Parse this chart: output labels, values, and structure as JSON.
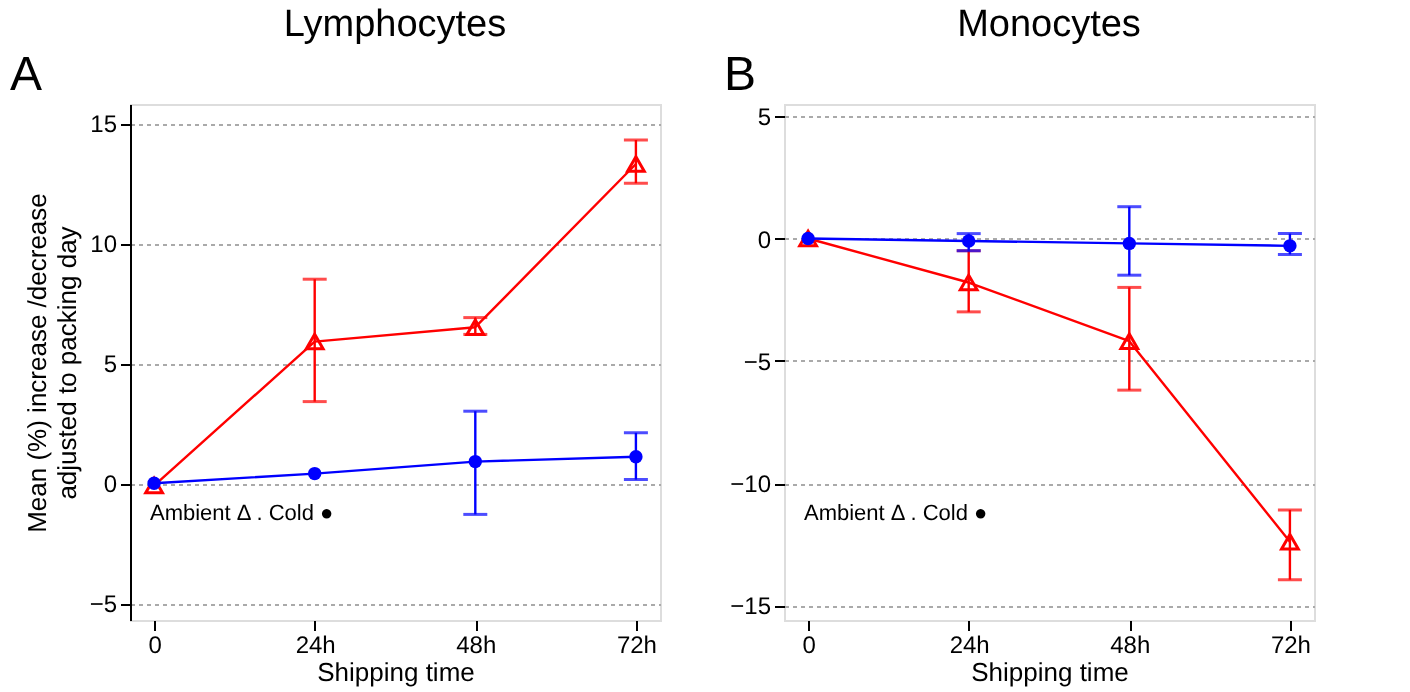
{
  "chart_data": [
    {
      "type": "line",
      "title": "Lymphocytes",
      "xlabel": "Shipping time",
      "ylabel": "Mean (%) increase /decrease adjusted to packing day",
      "annotations": [
        "A",
        "Ambient Δ . Cold ●"
      ],
      "categories": [
        "0",
        "24h",
        "48h",
        "72h"
      ],
      "ylim": [
        -5.7,
        15.8
      ],
      "yticks": [
        -5,
        0,
        5,
        10,
        15
      ],
      "grid": "y",
      "line_style": "solid",
      "series": [
        {
          "color": "#ff0000",
          "marker": "triangle",
          "values": [
            -0.1,
            5.9,
            6.5,
            13.3
          ],
          "errors": [
            null,
            [
              3.4,
              8.5
            ],
            [
              6.2,
              6.9
            ],
            [
              12.5,
              14.3
            ]
          ]
        },
        {
          "color": "#0000ff",
          "marker": "circle",
          "values": [
            0,
            0.4,
            0.9,
            1.1
          ],
          "errors": [
            null,
            null,
            [
              -1.3,
              3.0
            ],
            [
              0.15,
              2.1
            ]
          ]
        }
      ]
    },
    {
      "type": "line",
      "title": "Monocytes",
      "xlabel": "Shipping time",
      "annotations": [
        "B",
        "Ambient Δ . Cold ●"
      ],
      "categories": [
        "0",
        "24h",
        "48h",
        "72h"
      ],
      "ylim": [
        -15.6,
        5.5
      ],
      "yticks": [
        -15,
        -10,
        -5,
        0,
        5
      ],
      "grid": "y",
      "line_style": "solid",
      "series": [
        {
          "color": "#ff0000",
          "marker": "triangle",
          "values": [
            0,
            -1.8,
            -4.2,
            -12.4
          ],
          "errors": [
            null,
            [
              -3.0,
              -0.5
            ],
            [
              -6.2,
              -2.0
            ],
            [
              -13.95,
              -11.1
            ]
          ]
        },
        {
          "color": "#0000ff",
          "marker": "circle",
          "values": [
            0,
            -0.1,
            -0.2,
            -0.3
          ],
          "errors": [
            null,
            [
              -0.5,
              0.2
            ],
            [
              -1.5,
              1.3
            ],
            [
              -0.65,
              0.2
            ]
          ]
        }
      ]
    }
  ]
}
